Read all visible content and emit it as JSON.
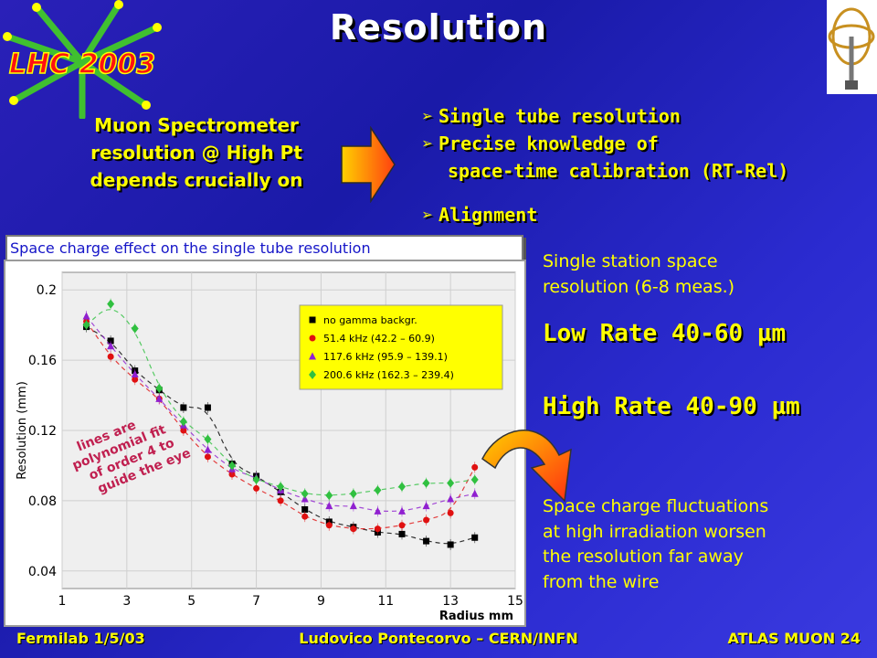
{
  "slide": {
    "title": "Resolution",
    "logo_text": "LHC 2003",
    "intro_lines": [
      "Muon Spectrometer",
      "resolution @ High Pt",
      "depends crucially on"
    ],
    "bullets": [
      {
        "text": "Single tube resolution"
      },
      {
        "text": "Precise knowledge of"
      },
      {
        "text": "space-time calibration (RT-Rel)"
      },
      {
        "text": "Alignment"
      }
    ],
    "caption": "Space charge effect on the single tube resolution",
    "station_text": [
      "Single station space",
      "resolution (6-8 meas.)"
    ],
    "low_rate": "Low Rate  40-60 µm",
    "high_rate": "High Rate 40-90 µm",
    "fluct_text": [
      "Space charge fluctuations",
      "at high irradiation worsen",
      "the resolution far away",
      "from the wire"
    ],
    "footer": {
      "left": "Fermilab 1/5/03",
      "center": "Ludovico Pontecorvo – CERN/INFN",
      "right": "ATLAS MUON 24"
    }
  },
  "colors": {
    "title": "#ffffff",
    "highlight": "#ffff00",
    "caption_text": "#1515c8",
    "legend_bg": "#ffff00"
  },
  "chart_data": {
    "type": "scatter",
    "xlabel": "Radius mm",
    "ylabel": "Resolution (mm)",
    "xlim": [
      1,
      15
    ],
    "ylim": [
      0.03,
      0.21
    ],
    "xticks": [
      1,
      3,
      5,
      7,
      9,
      11,
      13,
      15
    ],
    "yticks": [
      0.04,
      0.08,
      0.12,
      0.16,
      0.2
    ],
    "ytick_labels": [
      "0.04",
      "0.08",
      "0.12",
      "0.16",
      "0.2"
    ],
    "grid": true,
    "legend_position": "top-right",
    "annotation": [
      "lines are",
      "polynomial fit",
      "of order 4 to",
      "guide the eye"
    ],
    "series": [
      {
        "name": "no gamma backgr.",
        "color": "#000000",
        "marker": "square",
        "x": [
          1.75,
          2.5,
          3.25,
          4.0,
          4.75,
          5.5,
          6.25,
          7.0,
          7.75,
          8.5,
          9.25,
          10.0,
          10.75,
          11.5,
          12.25,
          13.0,
          13.75
        ],
        "y": [
          0.179,
          0.171,
          0.154,
          0.143,
          0.133,
          0.133,
          0.101,
          0.094,
          0.085,
          0.075,
          0.068,
          0.065,
          0.062,
          0.061,
          0.057,
          0.055,
          0.059
        ]
      },
      {
        "name": "51.4 kHz (42.2 – 60.9)",
        "color": "#e01010",
        "marker": "circle",
        "x": [
          1.75,
          2.5,
          3.25,
          4.0,
          4.75,
          5.5,
          6.25,
          7.0,
          7.75,
          8.5,
          9.25,
          10.0,
          10.75,
          11.5,
          12.25,
          13.0,
          13.75
        ],
        "y": [
          0.182,
          0.162,
          0.149,
          0.138,
          0.12,
          0.105,
          0.095,
          0.087,
          0.08,
          0.071,
          0.066,
          0.064,
          0.064,
          0.066,
          0.069,
          0.073,
          0.099
        ]
      },
      {
        "name": "117.6 kHz (95.9 – 139.1)",
        "color": "#9020d0",
        "marker": "triangle",
        "x": [
          1.75,
          2.5,
          3.25,
          4.0,
          4.75,
          5.5,
          6.25,
          7.0,
          7.75,
          8.5,
          9.25,
          10.0,
          10.75,
          11.5,
          12.25,
          13.0,
          13.75
        ],
        "y": [
          0.185,
          0.168,
          0.152,
          0.138,
          0.123,
          0.109,
          0.098,
          0.093,
          0.086,
          0.081,
          0.077,
          0.077,
          0.074,
          0.074,
          0.077,
          0.081,
          0.084
        ]
      },
      {
        "name": "200.6 kHz (162.3 – 239.4)",
        "color": "#30c040",
        "marker": "diamond",
        "x": [
          1.75,
          2.5,
          3.25,
          4.0,
          4.75,
          5.5,
          6.25,
          7.0,
          7.75,
          8.5,
          9.25,
          10.0,
          10.75,
          11.5,
          12.25,
          13.0,
          13.75
        ],
        "y": [
          0.18,
          0.192,
          0.178,
          0.144,
          0.125,
          0.115,
          0.1,
          0.092,
          0.088,
          0.084,
          0.083,
          0.084,
          0.086,
          0.088,
          0.09,
          0.09,
          0.092
        ]
      }
    ]
  }
}
